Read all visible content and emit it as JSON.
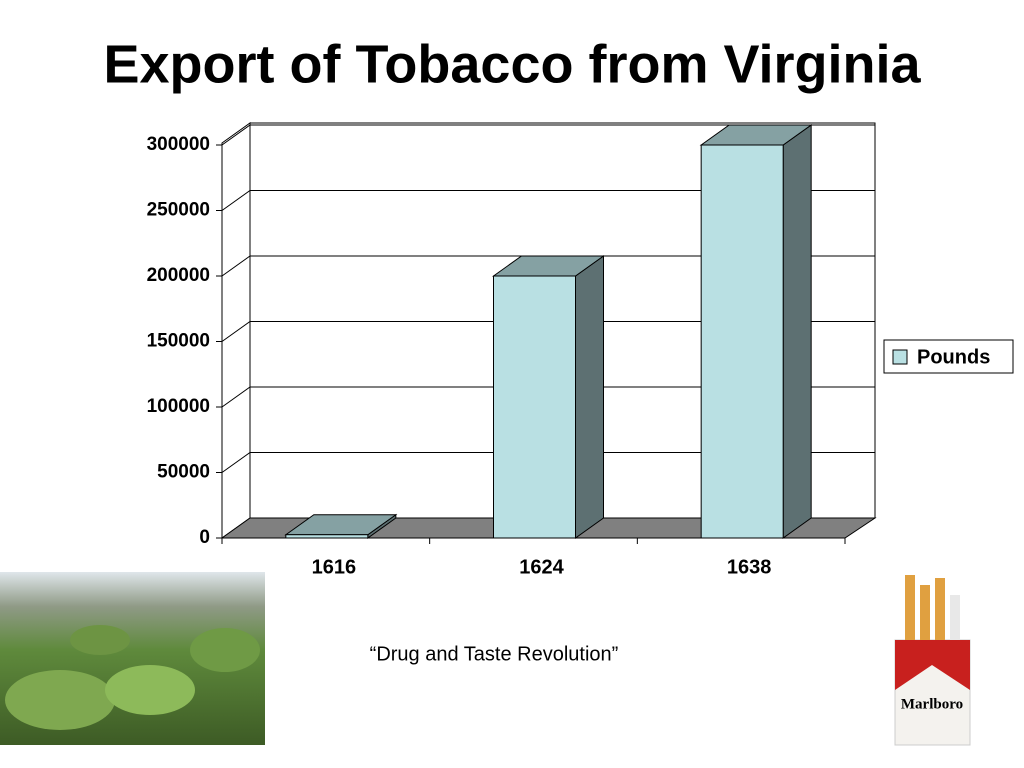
{
  "chart_data": {
    "type": "bar3d",
    "title": "Export of Tobacco from Virginia",
    "categories": [
      "1616",
      "1624",
      "1638"
    ],
    "series": [
      {
        "name": "Pounds",
        "color": "#b9e0e3",
        "values": [
          2500,
          200000,
          300000
        ]
      }
    ],
    "ylim": [
      0,
      300000
    ],
    "yticks": [
      0,
      50000,
      100000,
      150000,
      200000,
      250000,
      300000
    ],
    "grid": true,
    "legend": "right",
    "caption": "“Drug and Taste Revolution”"
  }
}
